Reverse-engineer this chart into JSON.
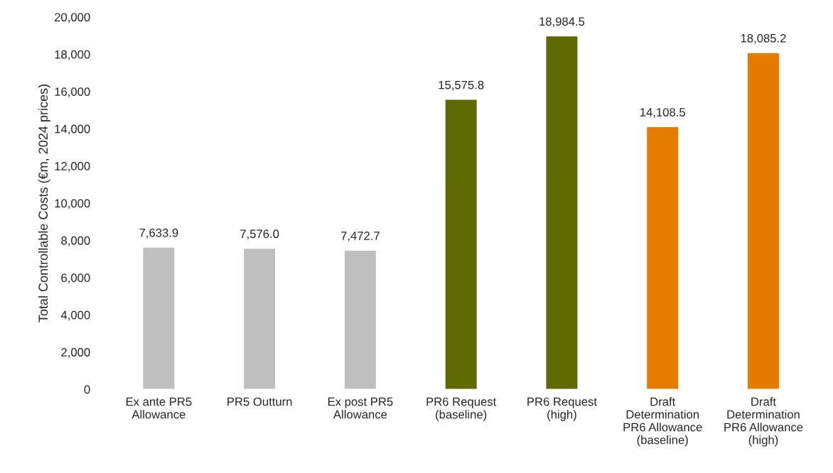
{
  "chart_data": {
    "type": "bar",
    "ylabel": "Total Controllable Costs (€m, 2024 prices)",
    "categories": [
      "Ex ante PR5\nAllowance",
      "PR5 Outturn",
      "Ex post PR5\nAllowance",
      "PR6 Request\n(baseline)",
      "PR6 Request\n(high)",
      "Draft\nDetermination\nPR6 Allowance\n(baseline)",
      "Draft\nDetermination\nPR6 Allowance\n(high)"
    ],
    "values": [
      7633.9,
      7576.0,
      7472.7,
      15575.8,
      18984.5,
      14108.5,
      18085.2
    ],
    "value_labels": [
      "7,633.9",
      "7,576.0",
      "7,472.7",
      "15,575.8",
      "18,984.5",
      "14,108.5",
      "18,085.2"
    ],
    "colors": [
      "#bfbfbf",
      "#bfbfbf",
      "#bfbfbf",
      "#5e6a00",
      "#5e6a00",
      "#e57c00",
      "#e57c00"
    ],
    "ylim": [
      0,
      20000
    ],
    "yticks": [
      0,
      {
        "value": 2000,
        "label": "2,000"
      },
      {
        "value": 4000,
        "label": "4,000"
      },
      {
        "value": 6000,
        "label": "6,000"
      },
      {
        "value": 8000,
        "label": "8,000"
      },
      {
        "value": 10000,
        "label": "10,000"
      },
      {
        "value": 12000,
        "label": "12,000"
      },
      {
        "value": 14000,
        "label": "14,000"
      },
      {
        "value": 16000,
        "label": "16,000"
      },
      {
        "value": 18000,
        "label": "18,000"
      },
      {
        "value": 20000,
        "label": "20,000"
      }
    ],
    "grid": false
  }
}
